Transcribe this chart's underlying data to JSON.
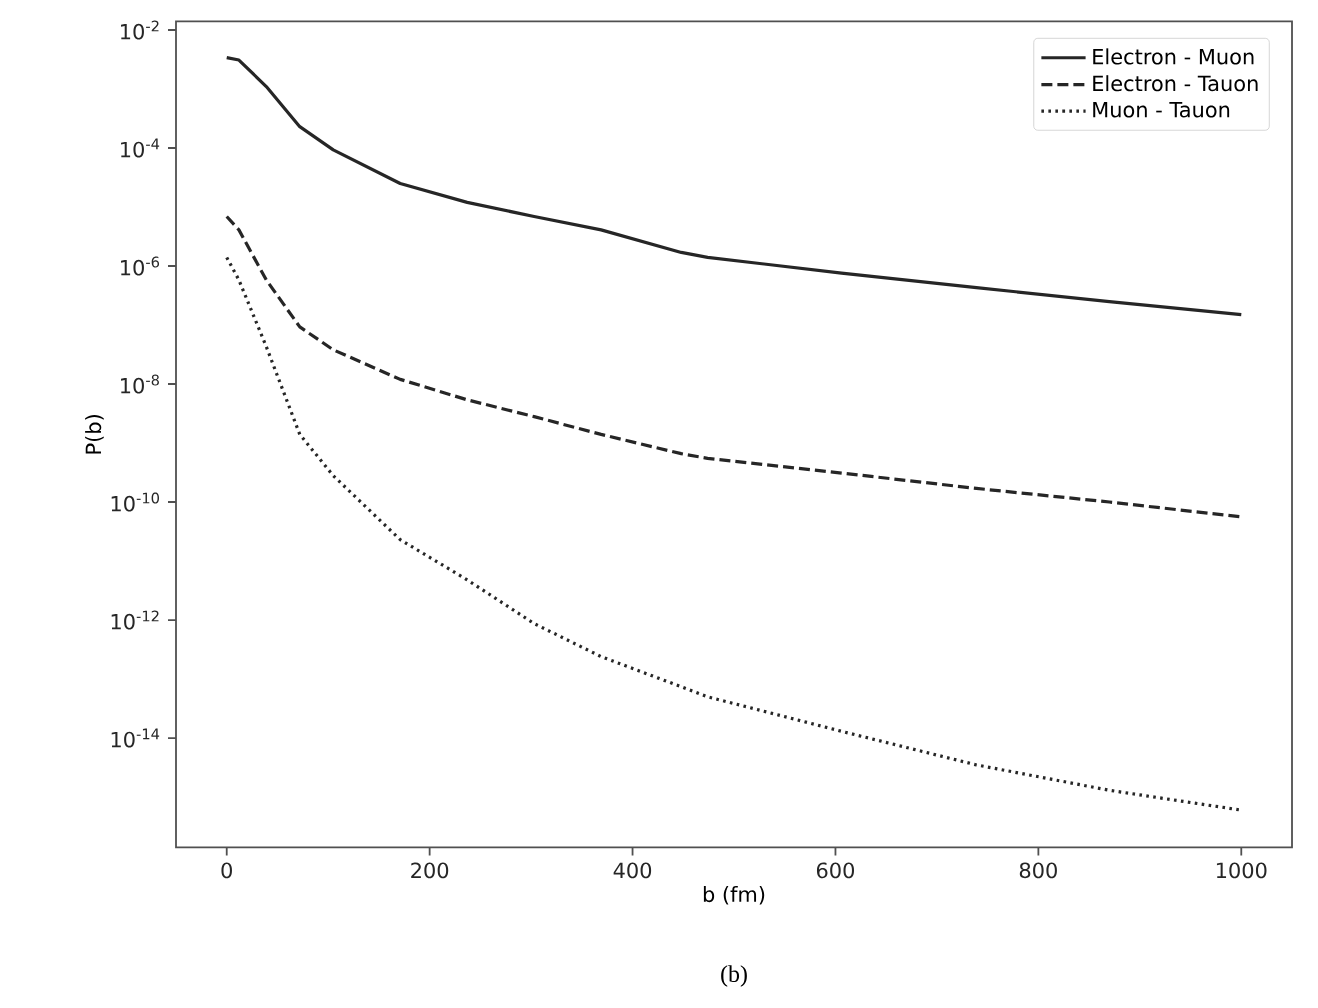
{
  "chart_data": {
    "type": "line",
    "xlabel": "b (fm)",
    "ylabel": "P(b)",
    "annotations": [
      "(b)"
    ],
    "x": [
      0,
      12,
      39,
      72,
      105,
      171,
      237,
      303,
      369,
      448,
      474,
      606,
      739,
      870,
      1000
    ],
    "series": [
      {
        "name": "Electron - Muon",
        "color": "#262626",
        "line_style": "solid",
        "values": [
          0.0034,
          0.0031,
          0.0011,
          0.00023,
          9.3e-05,
          2.5e-05,
          1.2e-05,
          6.9e-06,
          4.1e-06,
          1.7e-06,
          1.4e-06,
          7.6e-07,
          4.3e-07,
          2.5e-07,
          1.5e-07
        ]
      },
      {
        "name": "Electron - Tauon",
        "color": "#262626",
        "line_style": "dashed",
        "values": [
          6.9e-06,
          4.1e-06,
          5.8e-07,
          9.3e-08,
          3.8e-08,
          1.2e-08,
          5.4e-09,
          2.8e-09,
          1.4e-09,
          6.6e-10,
          5.5e-10,
          3.1e-10,
          1.7e-10,
          1e-10,
          5.6e-11
        ]
      },
      {
        "name": "Muon - Tauon",
        "color": "#262626",
        "line_style": "dotted",
        "values": [
          1.4e-06,
          5.8e-07,
          4.3e-08,
          1.4e-09,
          2.8e-10,
          2.3e-11,
          4.8e-12,
          8.7e-13,
          2.4e-13,
          7.4e-14,
          5e-14,
          1.3e-14,
          3.5e-15,
          1.3e-15,
          6e-16
        ]
      }
    ],
    "log": "y",
    "xlim": [
      -50,
      1050
    ],
    "ylim": [
      1.4e-16,
      0.014
    ],
    "xticks": [
      0,
      200,
      400,
      600,
      800,
      1000
    ],
    "yticks": [
      {
        "value": 1e-14,
        "label": "10$^{-14}$"
      },
      {
        "value": 1e-12,
        "label": "10$^{-12}$"
      },
      {
        "value": 1e-10,
        "label": "10$^{-10}$"
      },
      {
        "value": 1e-08,
        "label": "10$^{-8}$"
      },
      {
        "value": 1e-06,
        "label": "10$^{-6}$"
      },
      {
        "value": 0.0001,
        "label": "10$^{-4}$"
      },
      {
        "value": 0.01,
        "label": "10$^{-2}$"
      }
    ],
    "grid": false,
    "legend": "top right",
    "marker": "none"
  }
}
